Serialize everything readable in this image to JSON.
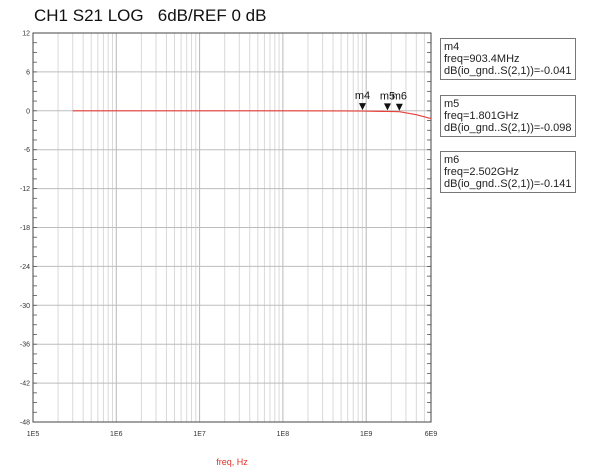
{
  "chart_data": {
    "type": "line",
    "title": "CH1 S21 LOG   6dB/REF 0 dB",
    "xlabel": "freq, Hz",
    "ylabel": "",
    "x_scale": "log",
    "xlim": [
      100000,
      6000000000
    ],
    "ylim": [
      -48,
      12
    ],
    "x_ticks": [
      {
        "value": 100000,
        "label": "1E5"
      },
      {
        "value": 1000000,
        "label": "1E6"
      },
      {
        "value": 10000000,
        "label": "1E7"
      },
      {
        "value": 100000000,
        "label": "1E8"
      },
      {
        "value": 1000000000,
        "label": "1E9"
      },
      {
        "value": 6000000000,
        "label": "6E9"
      }
    ],
    "y_ticks": [
      12,
      6,
      0,
      -6,
      -12,
      -18,
      -24,
      -30,
      -36,
      -42,
      -48
    ],
    "grid": true,
    "line_color": "#e8413a",
    "series": [
      {
        "x": [
          300000,
          1000000,
          10000000,
          100000000,
          500000000,
          903400000,
          1801000000,
          2502000000,
          4000000000,
          6000000000
        ],
        "y": [
          0,
          0,
          0,
          -0.005,
          -0.02,
          -0.041,
          -0.098,
          -0.141,
          -0.6,
          -1.2
        ]
      }
    ],
    "markers": [
      {
        "name": "m4",
        "freq": 903400000,
        "value": -0.041,
        "lines": [
          "m4",
          "freq=903.4MHz",
          "dB(io_gnd..S(2,1))=-0.041"
        ]
      },
      {
        "name": "m5",
        "freq": 1801000000,
        "value": -0.098,
        "lines": [
          "m5",
          "freq=1.801GHz",
          "dB(io_gnd..S(2,1))=-0.098"
        ]
      },
      {
        "name": "m6",
        "freq": 2502000000,
        "value": -0.141,
        "lines": [
          "m6",
          "freq=2.502GHz",
          "dB(io_gnd..S(2,1))=-0.141"
        ]
      }
    ]
  }
}
